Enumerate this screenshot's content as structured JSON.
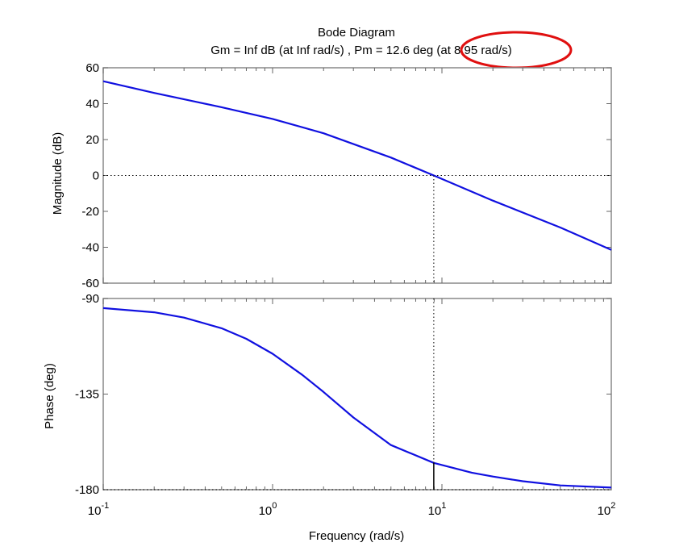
{
  "chart_data": {
    "type": "line",
    "title": "Bode Diagram",
    "subtitle_main": "Gm = Inf dB (at Inf rad/s) ,  Pm = 12.6 deg ",
    "subtitle_highlight": "(at 8.95 rad/s)",
    "xlabel": "Frequency  (rad/s)",
    "x_scale": "log",
    "xlim": [
      0.1,
      100
    ],
    "x_tick_values": [
      0.1,
      1,
      10,
      100
    ],
    "x_tick_base": "10",
    "x_tick_exponents": [
      "-1",
      "0",
      "1",
      "2"
    ],
    "crossover_frequency": 8.95,
    "magnitude": {
      "ylabel": "Magnitude (dB)",
      "ylim": [
        -60,
        60
      ],
      "yticks": [
        60,
        40,
        20,
        0,
        -20,
        -40,
        -60
      ],
      "ytick_labels": [
        "60",
        "40",
        "20",
        "0",
        "-20",
        "-40",
        "-60"
      ],
      "reference_line": 0,
      "x": [
        0.1,
        0.2,
        0.5,
        1,
        2,
        5,
        8.95,
        20,
        50,
        100
      ],
      "values": [
        52.5,
        46,
        38,
        31.5,
        23.5,
        10,
        0,
        -14,
        -29,
        -41.5
      ]
    },
    "phase": {
      "ylabel": "Phase (deg)",
      "ylim": [
        -180,
        -90
      ],
      "yticks": [
        -90,
        -135,
        -180
      ],
      "ytick_labels": [
        "-90",
        "-135",
        "-180"
      ],
      "reference_line": -180,
      "x": [
        0.1,
        0.2,
        0.3,
        0.5,
        0.7,
        1,
        1.5,
        2,
        3,
        5,
        8.95,
        15,
        20,
        30,
        50,
        100
      ],
      "values": [
        -94.5,
        -96.5,
        -99,
        -104,
        -109,
        -116,
        -126,
        -134,
        -146,
        -159,
        -167.4,
        -172,
        -173.8,
        -176,
        -178,
        -179
      ]
    },
    "colors": {
      "line": "#1010e0",
      "highlight": "#e01010"
    }
  }
}
